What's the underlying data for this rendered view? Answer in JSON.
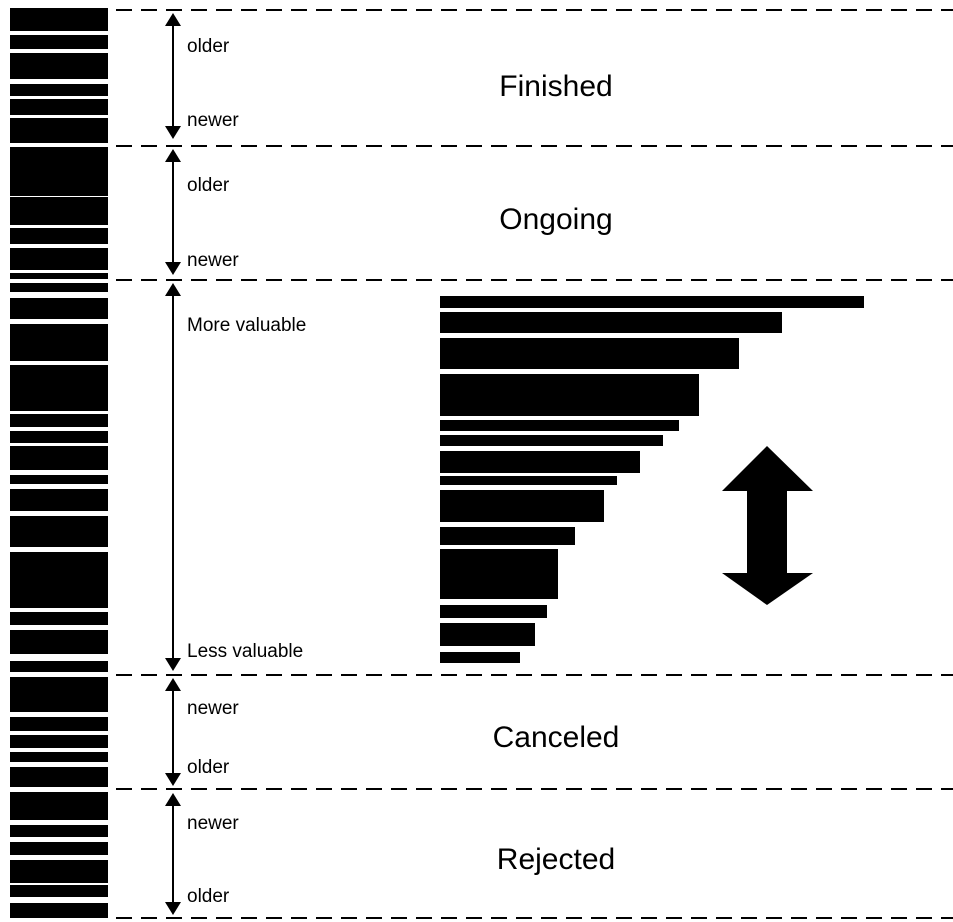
{
  "colors": {
    "ink": "#000000",
    "background": "#ffffff"
  },
  "sections": [
    {
      "id": "finished",
      "title": "Finished",
      "top_label": "older",
      "bottom_label": "newer"
    },
    {
      "id": "ongoing",
      "title": "Ongoing",
      "top_label": "older",
      "bottom_label": "newer"
    },
    {
      "id": "priority",
      "title": "",
      "top_label": "More valuable",
      "bottom_label": "Less valuable"
    },
    {
      "id": "canceled",
      "title": "Canceled",
      "top_label": "newer",
      "bottom_label": "older"
    },
    {
      "id": "rejected",
      "title": "Rejected",
      "top_label": "newer",
      "bottom_label": "older"
    }
  ],
  "stack_blocks": 39,
  "ranked_bars": 14,
  "icons": {
    "axis_arrow": "double-arrow-vertical",
    "reorder": "double-arrow-thick-vertical"
  }
}
